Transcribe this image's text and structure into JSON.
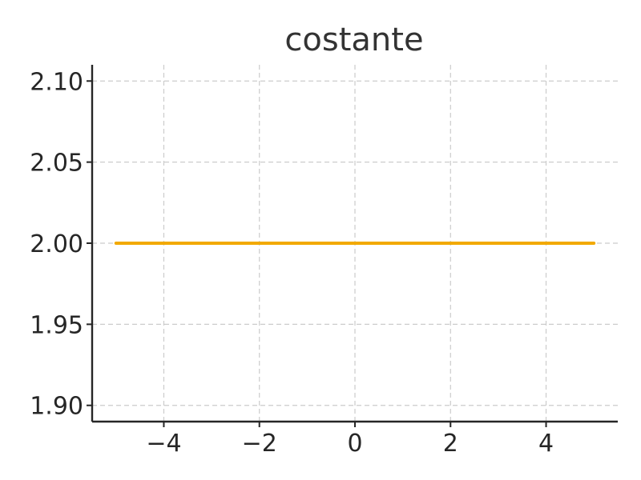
{
  "chart_data": {
    "type": "line",
    "title": "costante",
    "xlabel": "",
    "ylabel": "",
    "xlim": [
      -5.5,
      5.5
    ],
    "ylim": [
      1.89,
      2.11
    ],
    "x_ticks": [
      -4,
      -2,
      0,
      2,
      4
    ],
    "x_tick_labels": [
      "−4",
      "−2",
      "0",
      "2",
      "4"
    ],
    "y_ticks": [
      1.9,
      1.95,
      2.0,
      2.05,
      2.1
    ],
    "y_tick_labels": [
      "1.90",
      "1.95",
      "2.00",
      "2.05",
      "2.10"
    ],
    "grid": true,
    "legend": "none",
    "series": [
      {
        "color": "#f2a900",
        "x": [
          -5,
          5
        ],
        "y": [
          2,
          2
        ]
      }
    ]
  }
}
